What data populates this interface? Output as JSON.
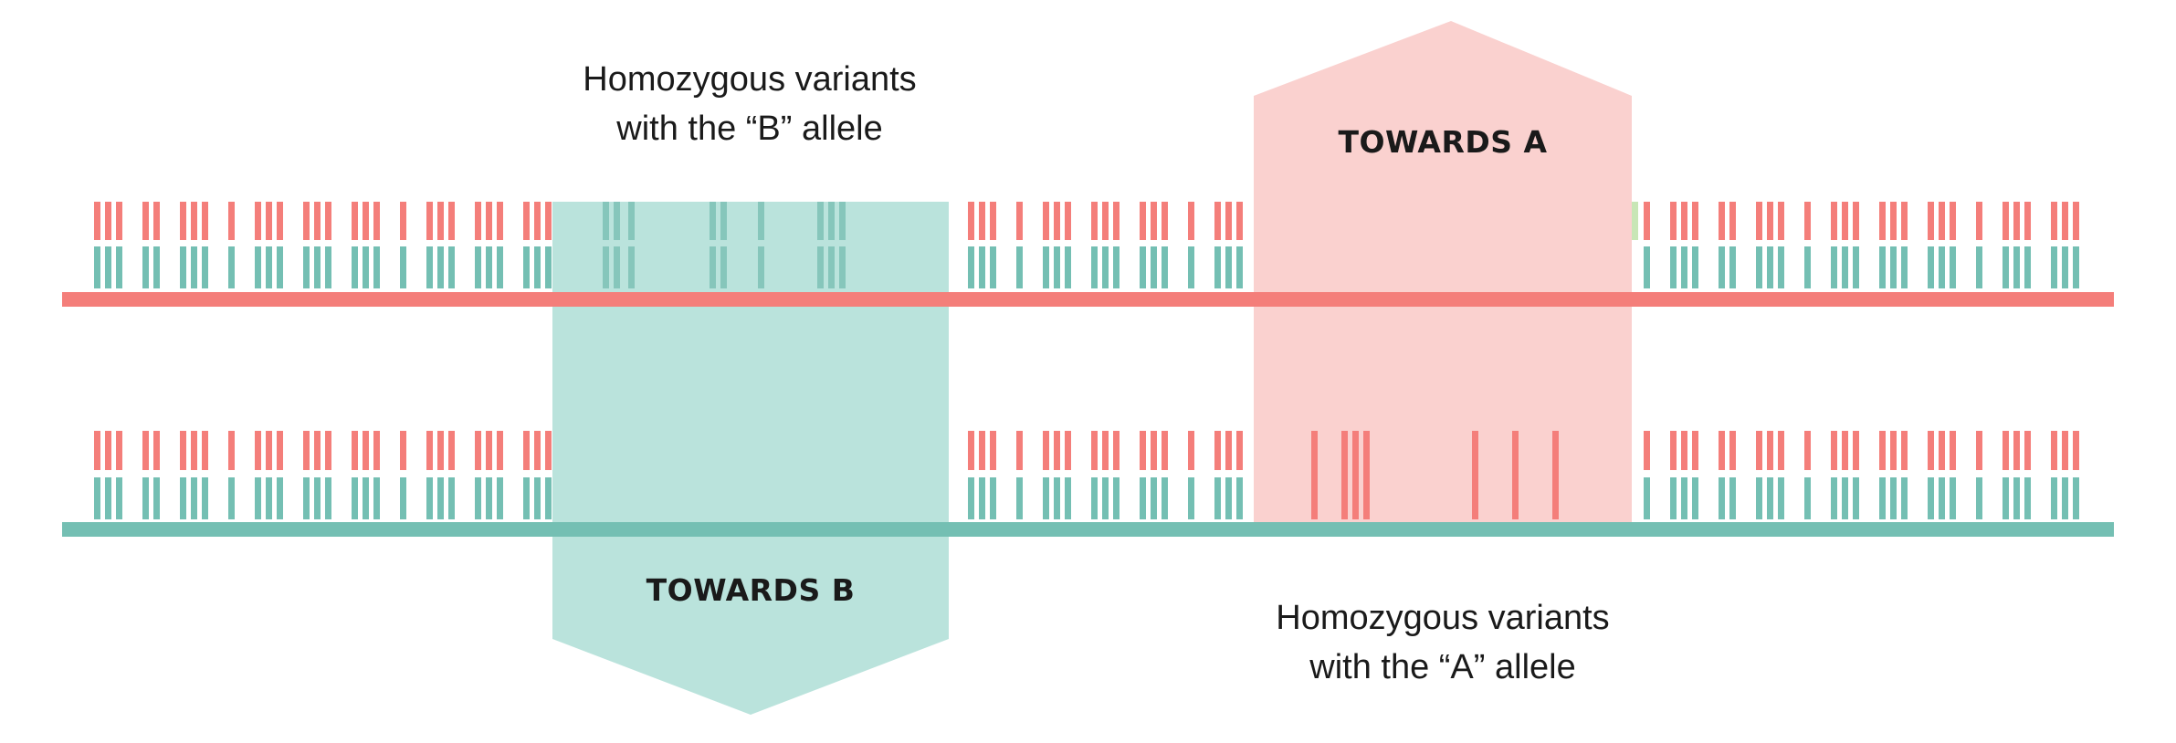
{
  "colors": {
    "allele_a": "#f47e7a",
    "allele_b": "#74bfb3",
    "region_a": "#fad1cf",
    "region_b": "#bae3dc",
    "text": "#1a1a1a"
  },
  "labels": {
    "top_caption_line1": "Homozygous variants",
    "top_caption_line2": "with the “B” allele",
    "bottom_caption_line1": "Homozygous variants",
    "bottom_caption_line2": "with the “A” allele",
    "towards_a": "TOWARDS A",
    "towards_b": "TOWARDS B"
  },
  "chromosomes": [
    {
      "name": "chromosome-a",
      "allele": "A"
    },
    {
      "name": "chromosome-b",
      "allele": "B"
    }
  ],
  "regions": [
    {
      "name": "towards-b-region",
      "direction": "down",
      "allele": "B"
    },
    {
      "name": "towards-a-region",
      "direction": "up",
      "allele": "A"
    }
  ]
}
